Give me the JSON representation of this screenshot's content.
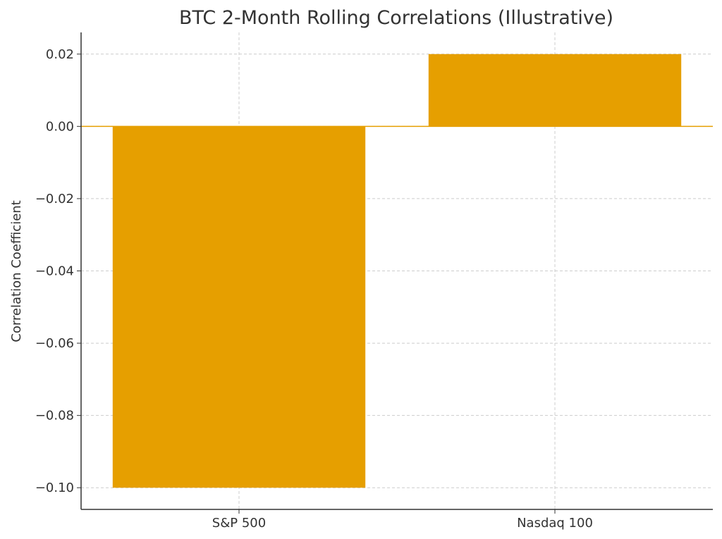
{
  "chart_data": {
    "type": "bar",
    "title": "BTC 2-Month Rolling Correlations (Illustrative)",
    "xlabel": "",
    "ylabel": "Correlation Coefficient",
    "categories": [
      "S&P 500",
      "Nasdaq 100"
    ],
    "values": [
      -0.1,
      0.02
    ],
    "ylim": [
      -0.106,
      0.026
    ],
    "yticks": [
      0.02,
      0.0,
      -0.02,
      -0.04,
      -0.06,
      -0.08,
      -0.1
    ],
    "ytick_labels": [
      "0.02",
      "0.00",
      "−0.02",
      "−0.04",
      "−0.06",
      "−0.08",
      "−0.10"
    ],
    "grid": true,
    "bar_color": "#E69F00",
    "zero_line_color": "#E69F00"
  }
}
